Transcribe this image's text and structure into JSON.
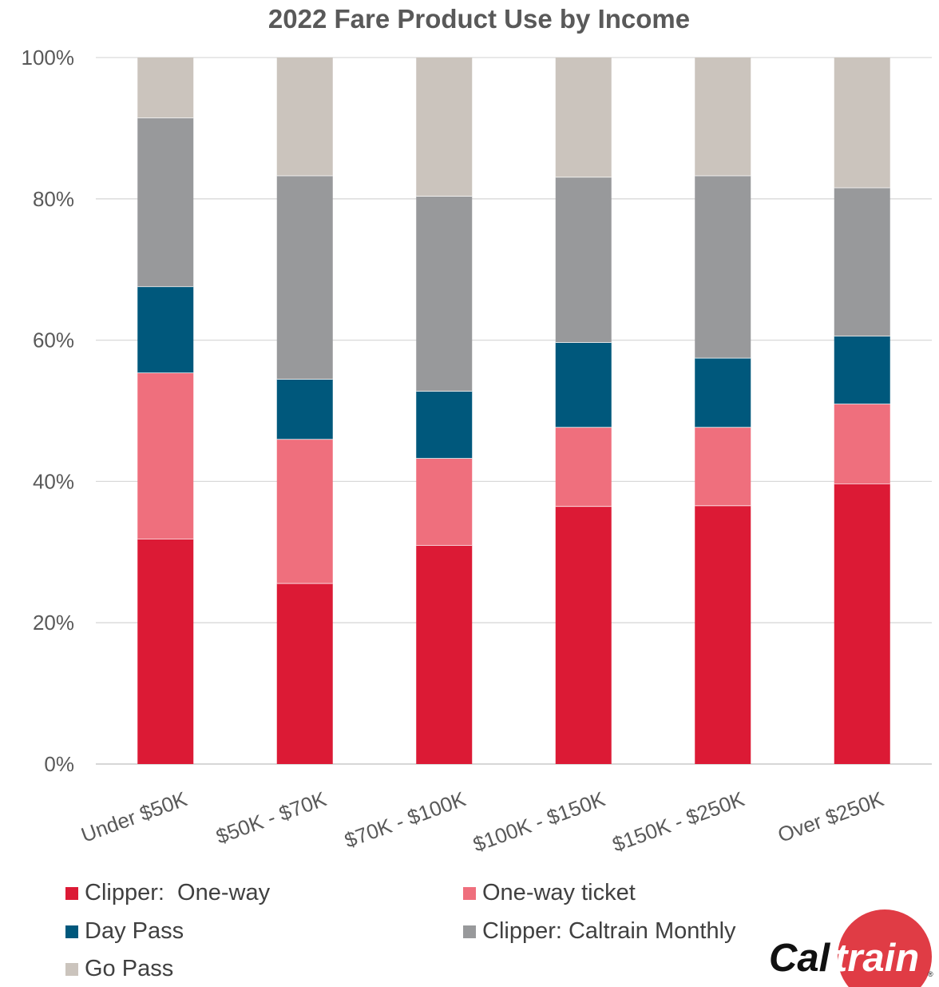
{
  "chart_data": {
    "type": "bar",
    "stacked": true,
    "percent": true,
    "title": "2022 Fare Product Use by Income",
    "xlabel": "",
    "ylabel": "",
    "ylim": [
      0,
      100
    ],
    "yticks": [
      "0%",
      "20%",
      "40%",
      "60%",
      "80%",
      "100%"
    ],
    "grid": true,
    "legend_position": "bottom",
    "categories": [
      "Under $50K",
      "$50K - $70K",
      "$70K - $100K",
      "$100K - $150K",
      "$150K - $250K",
      "Over $250K"
    ],
    "series": [
      {
        "name": "Clipper:  One-way",
        "color": "#dc1a35",
        "values": [
          31.9,
          25.6,
          31.0,
          36.5,
          36.6,
          39.7
        ]
      },
      {
        "name": "One-way ticket",
        "color": "#ef6f7d",
        "values": [
          23.5,
          20.4,
          12.3,
          11.2,
          11.1,
          11.3
        ]
      },
      {
        "name": "Day Pass",
        "color": "#00587c",
        "values": [
          12.2,
          8.5,
          9.5,
          12.0,
          9.8,
          9.6
        ]
      },
      {
        "name": "Clipper: Caltrain Monthly",
        "color": "#98999b",
        "values": [
          23.9,
          28.8,
          27.6,
          23.4,
          25.8,
          21.0
        ]
      },
      {
        "name": "Go Pass",
        "color": "#cbc4bd",
        "values": [
          8.5,
          16.7,
          19.6,
          16.9,
          16.7,
          18.4
        ]
      }
    ]
  },
  "logo": {
    "part1": "Cal",
    "part2": "train",
    "mark": "®",
    "circle_color": "#e03c45"
  }
}
